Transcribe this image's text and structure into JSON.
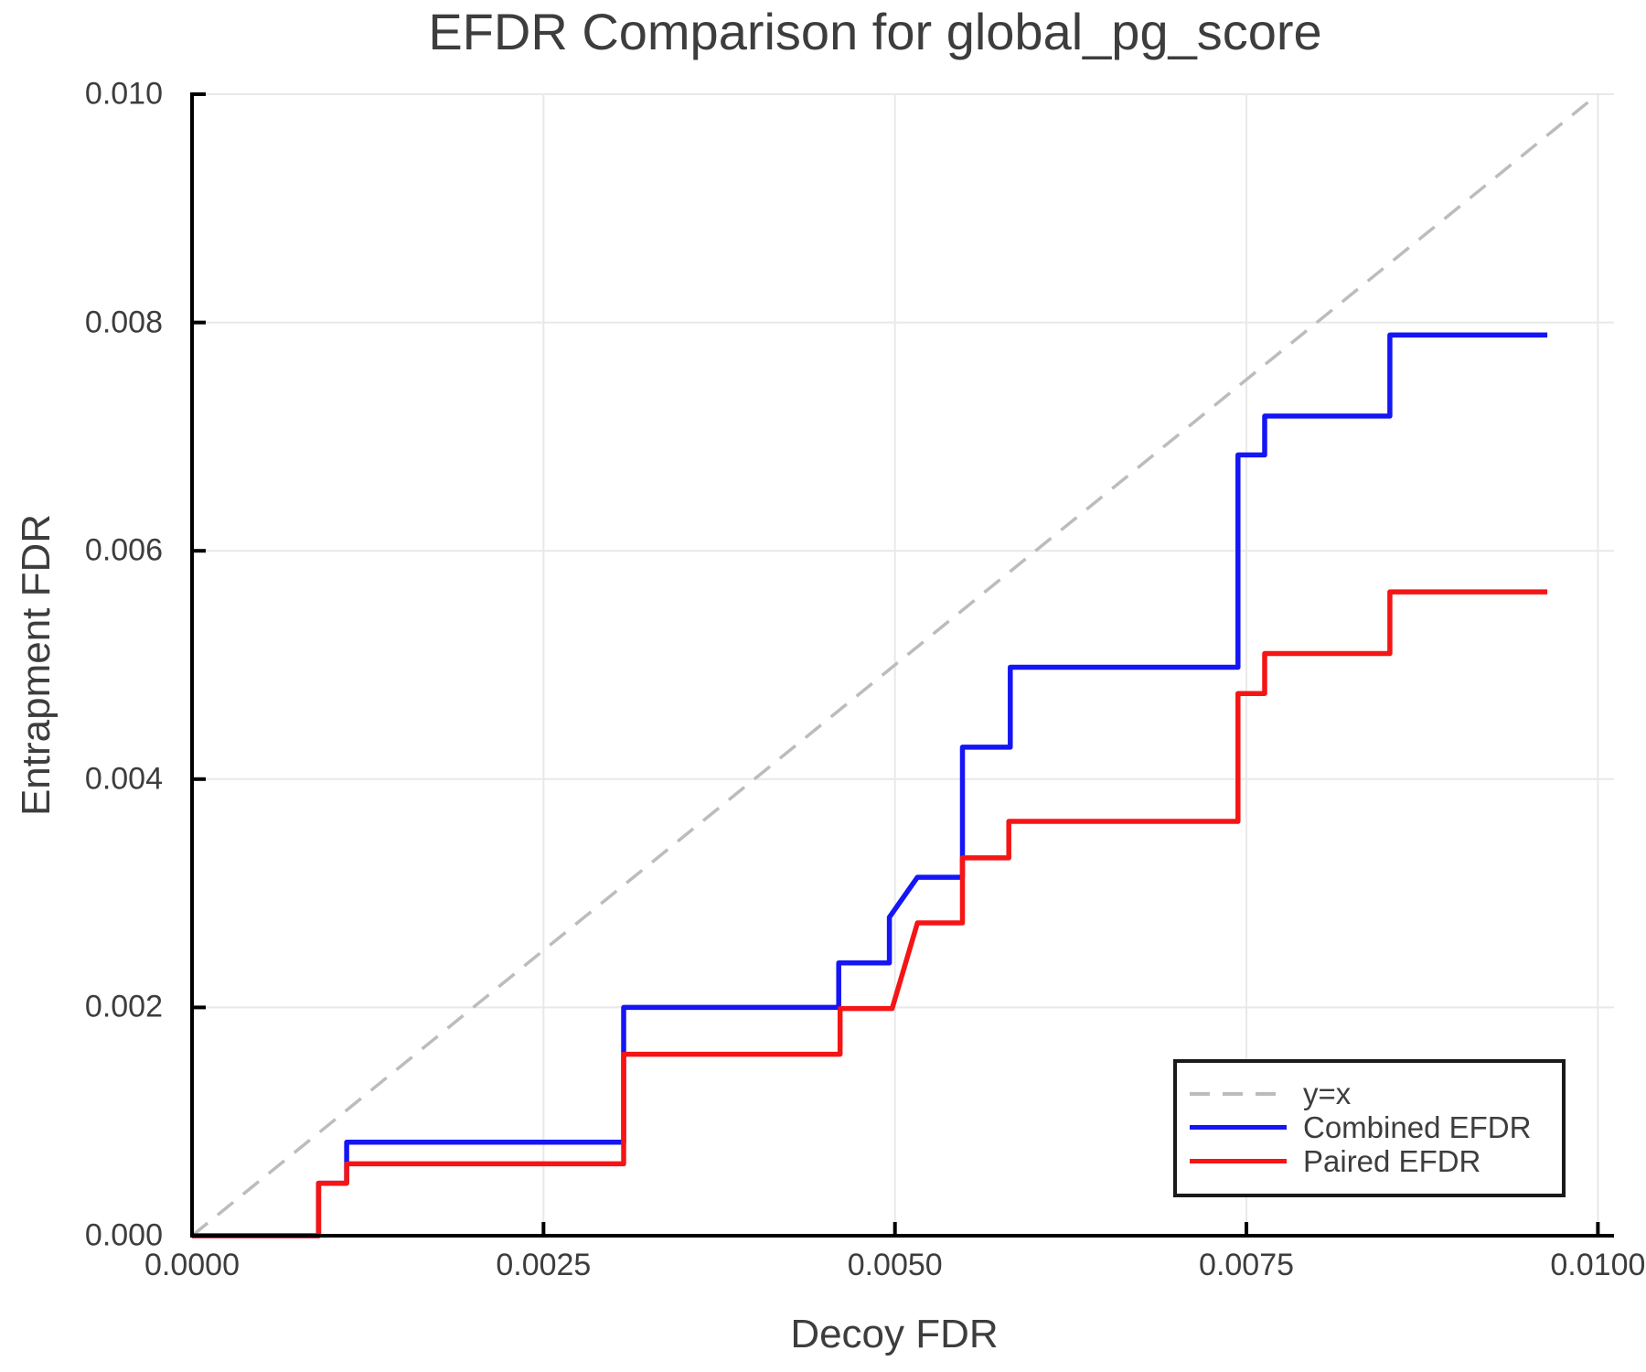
{
  "chart_data": {
    "type": "line",
    "title": "EFDR Comparison for global_pg_score",
    "xlabel": "Decoy FDR",
    "ylabel": "Entrapment FDR",
    "xlim": [
      0,
      0.01
    ],
    "ylim": [
      0,
      0.01
    ],
    "grid": true,
    "legend_position": "lower right",
    "x_ticks": {
      "values": [
        0,
        0.0025,
        0.005,
        0.0075,
        0.01
      ],
      "labels": [
        "0.0000",
        "0.0025",
        "0.0050",
        "0.0075",
        "0.0100"
      ]
    },
    "y_ticks": {
      "values": [
        0,
        0.002,
        0.004,
        0.006,
        0.008,
        0.01
      ],
      "labels": [
        "0.000",
        "0.002",
        "0.004",
        "0.006",
        "0.008",
        "0.010"
      ]
    },
    "series": [
      {
        "name": "y=x",
        "style": "dashed",
        "color": "#bcbcbc",
        "width": 3.5,
        "points": [
          [
            0,
            0
          ],
          [
            0.01,
            0.01
          ]
        ]
      },
      {
        "name": "Combined EFDR",
        "style": "solid",
        "color": "#1515f5",
        "width": 5.5,
        "points": [
          [
            0,
            0
          ],
          [
            0.0009,
            0
          ],
          [
            0.0009,
            0.00046
          ],
          [
            0.0011,
            0.00046
          ],
          [
            0.0011,
            0.00082
          ],
          [
            0.00307,
            0.00082
          ],
          [
            0.00307,
            0.002
          ],
          [
            0.0046,
            0.002
          ],
          [
            0.0046,
            0.00239
          ],
          [
            0.00496,
            0.00239
          ],
          [
            0.00496,
            0.00279
          ],
          [
            0.00516,
            0.00314
          ],
          [
            0.00548,
            0.00314
          ],
          [
            0.00548,
            0.00428
          ],
          [
            0.00582,
            0.00428
          ],
          [
            0.00582,
            0.00498
          ],
          [
            0.00744,
            0.00498
          ],
          [
            0.00744,
            0.00684
          ],
          [
            0.00763,
            0.00684
          ],
          [
            0.00763,
            0.00718
          ],
          [
            0.00852,
            0.00718
          ],
          [
            0.00852,
            0.00789
          ],
          [
            0.00964,
            0.00789
          ]
        ]
      },
      {
        "name": "Paired EFDR",
        "style": "solid",
        "color": "#f51515",
        "width": 5.5,
        "points": [
          [
            0,
            0
          ],
          [
            0.0009,
            0
          ],
          [
            0.0009,
            0.00046
          ],
          [
            0.0011,
            0.00046
          ],
          [
            0.0011,
            0.00063
          ],
          [
            0.00307,
            0.00063
          ],
          [
            0.00307,
            0.00159
          ],
          [
            0.00461,
            0.00159
          ],
          [
            0.00461,
            0.00199
          ],
          [
            0.00498,
            0.00199
          ],
          [
            0.00516,
            0.00274
          ],
          [
            0.00548,
            0.00274
          ],
          [
            0.00548,
            0.00331
          ],
          [
            0.00581,
            0.00331
          ],
          [
            0.00581,
            0.00363
          ],
          [
            0.00744,
            0.00363
          ],
          [
            0.00744,
            0.00475
          ],
          [
            0.00763,
            0.00475
          ],
          [
            0.00763,
            0.0051
          ],
          [
            0.00852,
            0.0051
          ],
          [
            0.00852,
            0.00564
          ],
          [
            0.00964,
            0.00564
          ]
        ]
      }
    ]
  }
}
